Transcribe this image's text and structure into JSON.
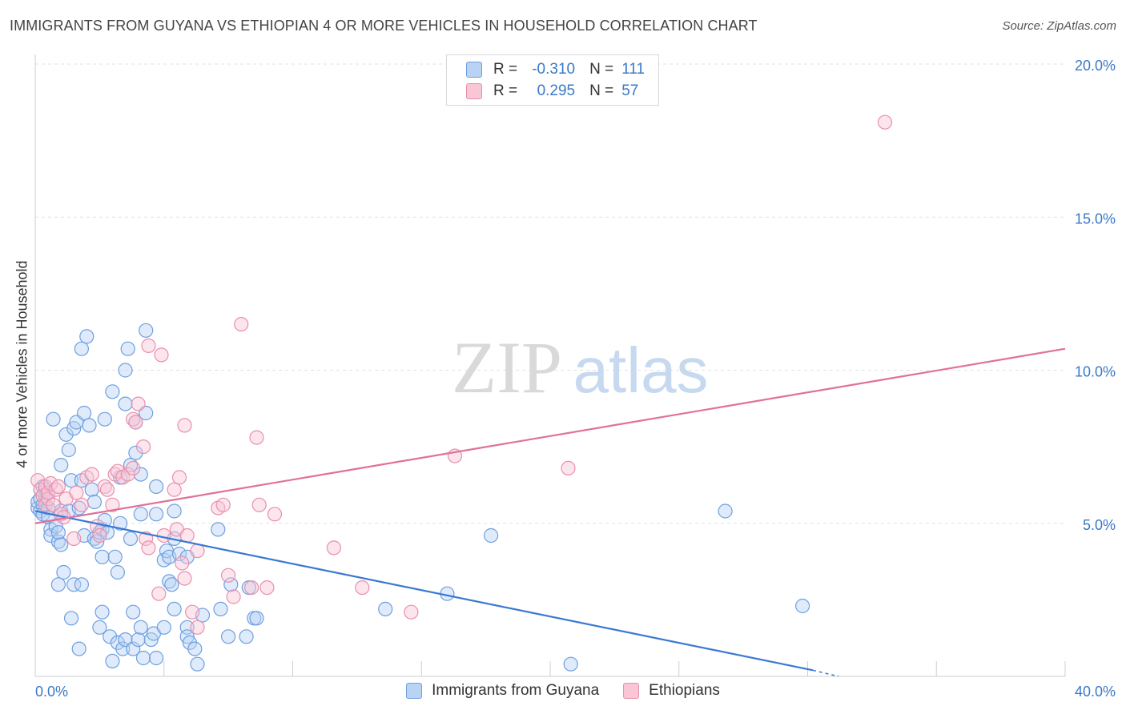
{
  "header": {
    "title": "IMMIGRANTS FROM GUYANA VS ETHIOPIAN 4 OR MORE VEHICLES IN HOUSEHOLD CORRELATION CHART",
    "source": "Source: ZipAtlas.com"
  },
  "legend_top": {
    "rows": [
      {
        "r_label": "R =",
        "r_value": "-0.310",
        "n_label": "N =",
        "n_value": "111"
      },
      {
        "r_label": "R =",
        "r_value": "0.295",
        "n_label": "N =",
        "n_value": "57"
      }
    ]
  },
  "legend_bottom": [
    "Immigrants from Guyana",
    "Ethiopians"
  ],
  "watermark": {
    "zip": "ZIP",
    "atlas": "atlas"
  },
  "colors": {
    "blue": "#6e9fe0",
    "blue_fill": "#b9d3f5",
    "pink": "#e890ac",
    "pink_fill": "#f9c6d6",
    "blue_line": "#3a78d4",
    "pink_line": "#e0709a",
    "axis_text": "#3a78c9"
  },
  "chart_data": {
    "type": "scatter",
    "title": "IMMIGRANTS FROM GUYANA VS ETHIOPIAN 4 OR MORE VEHICLES IN HOUSEHOLD CORRELATION CHART",
    "xlabel": "",
    "ylabel": "4 or more Vehicles in Household",
    "xlim": [
      0,
      40
    ],
    "ylim": [
      0,
      20
    ],
    "x_tick_labels": [
      "0.0%",
      "40.0%"
    ],
    "y_tick_labels": [
      "5.0%",
      "10.0%",
      "15.0%",
      "20.0%"
    ],
    "y_ticks": [
      5,
      10,
      15,
      20
    ],
    "grid": true,
    "series": [
      {
        "name": "Immigrants from Guyana",
        "color": "#6e9fe0",
        "trend": {
          "x": [
            0,
            30.2
          ],
          "y": [
            5.4,
            0.2
          ]
        },
        "points": [
          [
            0.1,
            5.5
          ],
          [
            0.1,
            5.7
          ],
          [
            0.2,
            5.4
          ],
          [
            0.2,
            5.8
          ],
          [
            0.3,
            5.6
          ],
          [
            0.3,
            6.2
          ],
          [
            0.3,
            5.3
          ],
          [
            0.4,
            5.9
          ],
          [
            0.4,
            6.1
          ],
          [
            0.5,
            5.5
          ],
          [
            0.5,
            5.2
          ],
          [
            0.6,
            4.8
          ],
          [
            0.6,
            4.6
          ],
          [
            0.7,
            8.4
          ],
          [
            0.8,
            4.9
          ],
          [
            0.9,
            4.4
          ],
          [
            0.9,
            4.7
          ],
          [
            0.9,
            3.0
          ],
          [
            1.0,
            5.4
          ],
          [
            1.0,
            6.9
          ],
          [
            1.0,
            4.3
          ],
          [
            1.1,
            3.4
          ],
          [
            1.2,
            7.9
          ],
          [
            1.3,
            7.4
          ],
          [
            1.3,
            5.4
          ],
          [
            1.4,
            6.4
          ],
          [
            1.4,
            1.9
          ],
          [
            1.5,
            3.0
          ],
          [
            1.5,
            8.1
          ],
          [
            1.6,
            8.3
          ],
          [
            1.7,
            5.5
          ],
          [
            1.7,
            0.9
          ],
          [
            1.8,
            3.0
          ],
          [
            1.8,
            10.7
          ],
          [
            1.8,
            6.4
          ],
          [
            1.9,
            8.6
          ],
          [
            1.9,
            4.6
          ],
          [
            2.0,
            11.1
          ],
          [
            2.1,
            8.2
          ],
          [
            2.2,
            6.1
          ],
          [
            2.3,
            5.7
          ],
          [
            2.3,
            4.5
          ],
          [
            2.4,
            4.4
          ],
          [
            2.5,
            1.6
          ],
          [
            2.5,
            4.7
          ],
          [
            2.6,
            2.1
          ],
          [
            2.6,
            3.9
          ],
          [
            2.6,
            4.8
          ],
          [
            2.7,
            5.1
          ],
          [
            2.7,
            8.4
          ],
          [
            2.8,
            4.7
          ],
          [
            2.9,
            1.3
          ],
          [
            3.0,
            9.3
          ],
          [
            3.0,
            0.5
          ],
          [
            3.1,
            3.9
          ],
          [
            3.2,
            3.4
          ],
          [
            3.2,
            1.1
          ],
          [
            3.3,
            5.0
          ],
          [
            3.3,
            6.5
          ],
          [
            3.4,
            0.9
          ],
          [
            3.5,
            1.2
          ],
          [
            3.5,
            10.0
          ],
          [
            3.5,
            8.9
          ],
          [
            3.6,
            10.7
          ],
          [
            3.7,
            6.9
          ],
          [
            3.7,
            4.5
          ],
          [
            3.8,
            2.1
          ],
          [
            3.8,
            0.9
          ],
          [
            3.9,
            8.3
          ],
          [
            3.9,
            7.3
          ],
          [
            4.0,
            1.2
          ],
          [
            4.1,
            5.3
          ],
          [
            4.1,
            1.6
          ],
          [
            4.1,
            6.6
          ],
          [
            4.2,
            0.6
          ],
          [
            4.3,
            11.3
          ],
          [
            4.3,
            8.6
          ],
          [
            4.5,
            1.2
          ],
          [
            4.6,
            1.4
          ],
          [
            4.7,
            0.6
          ],
          [
            4.7,
            6.2
          ],
          [
            4.7,
            5.3
          ],
          [
            5.0,
            1.6
          ],
          [
            5.0,
            3.8
          ],
          [
            5.1,
            4.1
          ],
          [
            5.2,
            3.9
          ],
          [
            5.2,
            3.1
          ],
          [
            5.3,
            3.0
          ],
          [
            5.4,
            5.4
          ],
          [
            5.4,
            4.5
          ],
          [
            5.4,
            2.2
          ],
          [
            5.6,
            4.0
          ],
          [
            5.9,
            1.6
          ],
          [
            5.9,
            1.3
          ],
          [
            5.9,
            3.9
          ],
          [
            6.0,
            1.1
          ],
          [
            6.2,
            0.9
          ],
          [
            6.3,
            0.4
          ],
          [
            6.5,
            2.0
          ],
          [
            7.1,
            4.8
          ],
          [
            7.2,
            2.2
          ],
          [
            7.5,
            1.3
          ],
          [
            7.6,
            3.0
          ],
          [
            8.2,
            1.3
          ],
          [
            8.3,
            2.9
          ],
          [
            8.5,
            1.9
          ],
          [
            8.6,
            1.9
          ],
          [
            13.6,
            2.2
          ],
          [
            16.0,
            2.7
          ],
          [
            17.7,
            4.6
          ],
          [
            20.8,
            0.4
          ],
          [
            26.8,
            5.4
          ],
          [
            29.8,
            2.3
          ]
        ]
      },
      {
        "name": "Ethiopians",
        "color": "#e890ac",
        "trend": {
          "x": [
            0,
            40
          ],
          "y": [
            5.0,
            10.7
          ]
        },
        "points": [
          [
            0.1,
            6.4
          ],
          [
            0.2,
            6.1
          ],
          [
            0.3,
            5.9
          ],
          [
            0.4,
            6.2
          ],
          [
            0.4,
            5.6
          ],
          [
            0.5,
            5.8
          ],
          [
            0.5,
            6.0
          ],
          [
            0.6,
            6.3
          ],
          [
            0.7,
            5.6
          ],
          [
            0.8,
            6.1
          ],
          [
            0.9,
            6.2
          ],
          [
            1.0,
            5.3
          ],
          [
            1.1,
            5.2
          ],
          [
            1.2,
            5.8
          ],
          [
            1.5,
            4.5
          ],
          [
            1.6,
            6.0
          ],
          [
            1.8,
            5.6
          ],
          [
            2.0,
            6.5
          ],
          [
            2.2,
            6.6
          ],
          [
            2.4,
            4.9
          ],
          [
            2.5,
            4.6
          ],
          [
            2.7,
            6.2
          ],
          [
            2.8,
            6.1
          ],
          [
            3.0,
            5.6
          ],
          [
            3.1,
            6.6
          ],
          [
            3.2,
            6.7
          ],
          [
            3.4,
            6.5
          ],
          [
            3.6,
            6.6
          ],
          [
            3.8,
            6.8
          ],
          [
            3.8,
            8.4
          ],
          [
            3.9,
            8.3
          ],
          [
            4.0,
            8.9
          ],
          [
            4.2,
            7.5
          ],
          [
            4.3,
            4.5
          ],
          [
            4.4,
            4.2
          ],
          [
            4.4,
            10.8
          ],
          [
            4.8,
            2.7
          ],
          [
            4.9,
            10.5
          ],
          [
            5.0,
            4.6
          ],
          [
            5.4,
            6.1
          ],
          [
            5.5,
            4.8
          ],
          [
            5.6,
            6.5
          ],
          [
            5.7,
            3.7
          ],
          [
            5.8,
            8.2
          ],
          [
            5.8,
            3.2
          ],
          [
            5.9,
            4.6
          ],
          [
            6.1,
            2.1
          ],
          [
            6.3,
            1.6
          ],
          [
            6.3,
            4.1
          ],
          [
            7.1,
            5.5
          ],
          [
            7.3,
            5.6
          ],
          [
            7.5,
            3.3
          ],
          [
            7.7,
            2.6
          ],
          [
            8.0,
            11.5
          ],
          [
            8.4,
            2.9
          ],
          [
            8.6,
            7.8
          ],
          [
            8.7,
            5.6
          ],
          [
            9.0,
            2.9
          ],
          [
            9.3,
            5.3
          ],
          [
            11.6,
            4.2
          ],
          [
            12.7,
            2.9
          ],
          [
            14.6,
            2.1
          ],
          [
            16.3,
            7.2
          ],
          [
            20.7,
            6.8
          ],
          [
            33.0,
            18.1
          ]
        ]
      }
    ]
  }
}
